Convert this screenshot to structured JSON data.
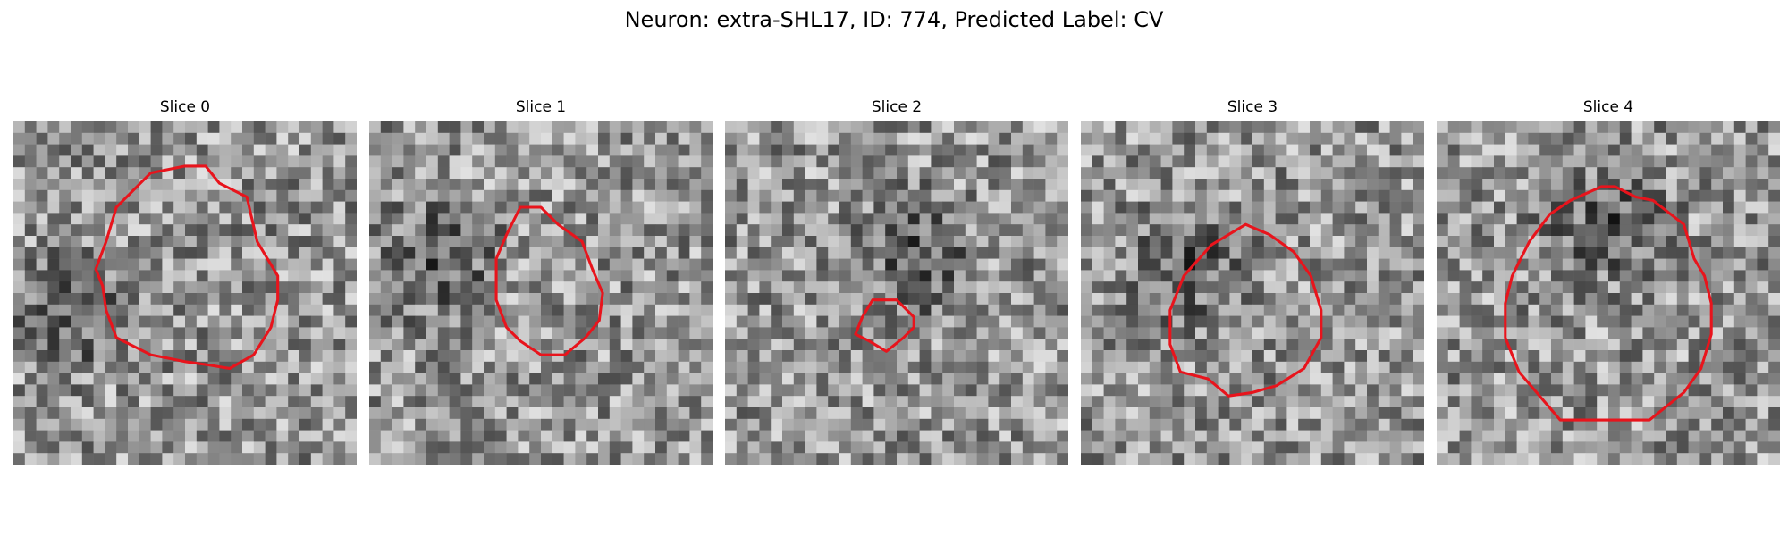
{
  "figure": {
    "title": "Neuron: extra-SHL17, ID: 774, Predicted Label: CV",
    "contour_color": "#e8141c"
  },
  "slices": [
    {
      "title": "Slice 0",
      "dark_blob": [
        0.18,
        0.55
      ],
      "outline": [
        [
          0.5,
          0.13
        ],
        [
          0.56,
          0.13
        ],
        [
          0.6,
          0.18
        ],
        [
          0.68,
          0.22
        ],
        [
          0.71,
          0.35
        ],
        [
          0.77,
          0.45
        ],
        [
          0.77,
          0.52
        ],
        [
          0.75,
          0.6
        ],
        [
          0.7,
          0.68
        ],
        [
          0.63,
          0.72
        ],
        [
          0.57,
          0.71
        ],
        [
          0.5,
          0.7
        ],
        [
          0.4,
          0.68
        ],
        [
          0.3,
          0.63
        ],
        [
          0.27,
          0.55
        ],
        [
          0.26,
          0.48
        ],
        [
          0.24,
          0.43
        ],
        [
          0.27,
          0.35
        ],
        [
          0.3,
          0.25
        ],
        [
          0.4,
          0.15
        ]
      ]
    },
    {
      "title": "Slice 1",
      "dark_blob": [
        0.2,
        0.4
      ],
      "outline": [
        [
          0.44,
          0.25
        ],
        [
          0.5,
          0.25
        ],
        [
          0.55,
          0.3
        ],
        [
          0.62,
          0.35
        ],
        [
          0.65,
          0.43
        ],
        [
          0.68,
          0.5
        ],
        [
          0.67,
          0.58
        ],
        [
          0.63,
          0.63
        ],
        [
          0.57,
          0.68
        ],
        [
          0.5,
          0.68
        ],
        [
          0.44,
          0.64
        ],
        [
          0.4,
          0.6
        ],
        [
          0.37,
          0.52
        ],
        [
          0.37,
          0.4
        ],
        [
          0.4,
          0.33
        ]
      ]
    },
    {
      "title": "Slice 2",
      "dark_blob": [
        0.55,
        0.4
      ],
      "outline": [
        [
          0.43,
          0.52
        ],
        [
          0.5,
          0.52
        ],
        [
          0.55,
          0.57
        ],
        [
          0.55,
          0.6
        ],
        [
          0.52,
          0.63
        ],
        [
          0.47,
          0.67
        ],
        [
          0.42,
          0.64
        ],
        [
          0.38,
          0.62
        ],
        [
          0.4,
          0.57
        ]
      ]
    },
    {
      "title": "Slice 3",
      "dark_blob": [
        0.3,
        0.42
      ],
      "outline": [
        [
          0.48,
          0.3
        ],
        [
          0.55,
          0.33
        ],
        [
          0.62,
          0.38
        ],
        [
          0.67,
          0.45
        ],
        [
          0.7,
          0.55
        ],
        [
          0.7,
          0.63
        ],
        [
          0.65,
          0.72
        ],
        [
          0.57,
          0.77
        ],
        [
          0.5,
          0.79
        ],
        [
          0.43,
          0.8
        ],
        [
          0.37,
          0.75
        ],
        [
          0.29,
          0.73
        ],
        [
          0.26,
          0.65
        ],
        [
          0.26,
          0.55
        ],
        [
          0.3,
          0.45
        ],
        [
          0.38,
          0.36
        ]
      ]
    },
    {
      "title": "Slice 4",
      "dark_blob": [
        0.5,
        0.3
      ],
      "outline": [
        [
          0.48,
          0.19
        ],
        [
          0.52,
          0.19
        ],
        [
          0.58,
          0.22
        ],
        [
          0.63,
          0.23
        ],
        [
          0.72,
          0.3
        ],
        [
          0.75,
          0.4
        ],
        [
          0.78,
          0.45
        ],
        [
          0.8,
          0.53
        ],
        [
          0.8,
          0.62
        ],
        [
          0.77,
          0.72
        ],
        [
          0.72,
          0.79
        ],
        [
          0.62,
          0.87
        ],
        [
          0.36,
          0.87
        ],
        [
          0.24,
          0.73
        ],
        [
          0.2,
          0.63
        ],
        [
          0.2,
          0.53
        ],
        [
          0.22,
          0.45
        ],
        [
          0.27,
          0.35
        ],
        [
          0.33,
          0.27
        ],
        [
          0.39,
          0.23
        ]
      ]
    }
  ]
}
